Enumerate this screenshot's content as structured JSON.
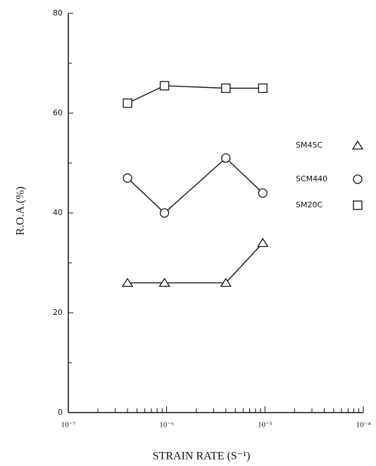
{
  "chart_data": {
    "type": "line",
    "x_label": "STRAIN RATE (S⁻¹)",
    "y_label": "R.O.A.(%)",
    "xscale": "log",
    "xlim": [
      1e-07,
      0.0001
    ],
    "xticks": [
      {
        "value": 1e-07,
        "label": "10⁻⁷"
      },
      {
        "value": 1e-06,
        "label": "10⁻⁶"
      },
      {
        "value": 1e-05,
        "label": "10⁻⁵"
      },
      {
        "value": 0.0001,
        "label": "10⁻⁴"
      }
    ],
    "ylim": [
      0,
      80
    ],
    "yticks": [
      0,
      20,
      40,
      60,
      80
    ],
    "yminor_ticks": [
      10,
      30,
      50,
      70
    ],
    "x": [
      4e-07,
      9.5e-07,
      4e-06,
      9.5e-06
    ],
    "series": [
      {
        "name": "SM45C",
        "marker": "triangle",
        "color": "#111111",
        "values": [
          26,
          26,
          26,
          34
        ]
      },
      {
        "name": "SCM440",
        "marker": "circle",
        "color": "#111111",
        "values": [
          47,
          40,
          51,
          44
        ]
      },
      {
        "name": "SM20C",
        "marker": "square",
        "color": "#111111",
        "values": [
          62,
          65.5,
          65,
          65
        ]
      }
    ]
  }
}
